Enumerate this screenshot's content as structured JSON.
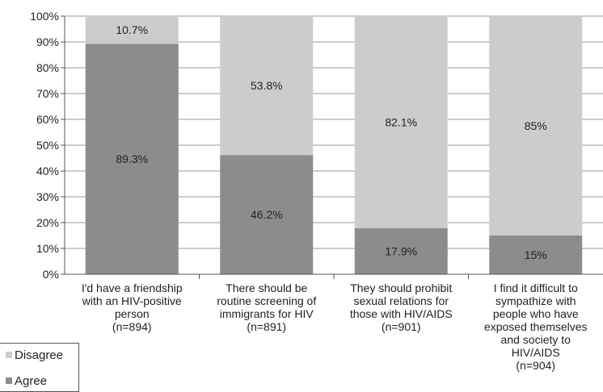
{
  "chart_data": {
    "type": "bar",
    "stacked": true,
    "percent": true,
    "categories": [
      [
        "I'd have a friendship",
        "with an HIV-positive",
        "person",
        "(n=894)"
      ],
      [
        "There should be",
        "routine screening of",
        "immigrants for HIV",
        "(n=891)"
      ],
      [
        "They should prohibit",
        "sexual relations for",
        "those with HIV/AIDS",
        "(n=901)"
      ],
      [
        "I find it difficult to",
        "sympathize with",
        "people who have",
        "exposed themselves",
        "and society to",
        "HIV/AIDS",
        "(n=904)"
      ]
    ],
    "series": [
      {
        "name": "Agree",
        "values": [
          89.3,
          46.2,
          17.9,
          15
        ],
        "labels": [
          "89.3%",
          "46.2%",
          "17.9%",
          "15%"
        ],
        "color": "#8c8c8c"
      },
      {
        "name": "Disagree",
        "values": [
          10.7,
          53.8,
          82.1,
          85
        ],
        "labels": [
          "10.7%",
          "53.8%",
          "82.1%",
          "85%"
        ],
        "color": "#cccccc"
      }
    ],
    "yticks": [
      "0%",
      "10%",
      "20%",
      "30%",
      "40%",
      "50%",
      "60%",
      "70%",
      "80%",
      "90%",
      "100%"
    ],
    "ylim": [
      0,
      100
    ],
    "grid": true,
    "legend": {
      "position": "bottom-left",
      "order": [
        "Disagree",
        "Agree"
      ]
    }
  }
}
